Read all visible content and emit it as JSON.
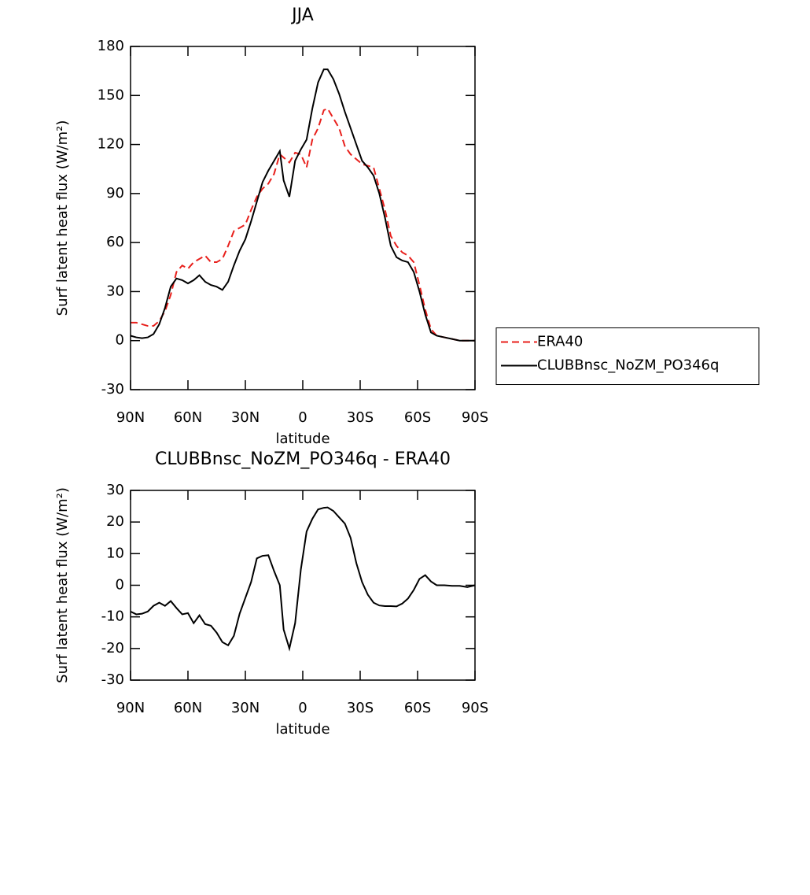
{
  "chart_data": [
    {
      "type": "line",
      "title": "JJA",
      "xlabel": "latitude",
      "ylabel": "Surf latent heat flux (W/m²)",
      "x": [
        90,
        87,
        84,
        81,
        78,
        75,
        72,
        69,
        66,
        63,
        60,
        57,
        54,
        51,
        48,
        45,
        42,
        39,
        36,
        33,
        30,
        27,
        24,
        21,
        18,
        15,
        12,
        10,
        7,
        4,
        1,
        -2,
        -5,
        -8,
        -11,
        -13,
        -16,
        -19,
        -22,
        -25,
        -28,
        -31,
        -34,
        -37,
        -40,
        -43,
        -46,
        -49,
        -52,
        -55,
        -58,
        -61,
        -64,
        -67,
        -70,
        -74,
        -78,
        -82,
        -86,
        -90
      ],
      "series": [
        {
          "name": "ERA40",
          "color": "#e8201c",
          "dashed": true,
          "values": [
            11,
            11,
            10,
            9,
            9,
            12,
            18,
            28,
            42,
            46,
            44,
            48,
            50,
            52,
            48,
            48,
            50,
            58,
            67,
            69,
            71,
            80,
            88,
            93,
            96,
            102,
            114,
            112,
            109,
            115,
            114,
            106,
            123,
            130,
            141,
            142,
            136,
            130,
            119,
            114,
            111,
            108,
            107,
            106,
            93,
            80,
            64,
            58,
            54,
            52,
            48,
            34,
            19,
            7,
            3,
            2,
            1,
            0,
            0,
            0
          ]
        },
        {
          "name": "CLUBBnsc_NoZM_PO346q",
          "color": "#000000",
          "dashed": false,
          "values": [
            3,
            2,
            1.5,
            2,
            4,
            10,
            20,
            33,
            38,
            37,
            35,
            37,
            40,
            36,
            34,
            33,
            31,
            36,
            46,
            55,
            62,
            73,
            85,
            97,
            104,
            110,
            116,
            98,
            88,
            110,
            117,
            123,
            142,
            158,
            166,
            166,
            160,
            151,
            140,
            130,
            120,
            110,
            106,
            101,
            90,
            75,
            58,
            51,
            49,
            48,
            42,
            30,
            16,
            5,
            3,
            2,
            1,
            0,
            0,
            0
          ]
        }
      ],
      "xlim": [
        90,
        -90
      ],
      "xticks": [
        {
          "value": 90,
          "label": "90N"
        },
        {
          "value": 60,
          "label": "60N"
        },
        {
          "value": 30,
          "label": "30N"
        },
        0,
        {
          "value": -30,
          "label": "30S"
        },
        {
          "value": -60,
          "label": "60S"
        },
        {
          "value": -90,
          "label": "90S"
        }
      ],
      "ylim": [
        -30,
        180
      ],
      "yticks": [
        -30,
        0,
        30,
        60,
        90,
        120,
        150,
        180
      ],
      "legend_position": "outside-right"
    },
    {
      "type": "line",
      "title": "CLUBBnsc_NoZM_PO346q - ERA40",
      "xlabel": "latitude",
      "ylabel": "Surf latent heat flux (W/m²)",
      "x": [
        90,
        87,
        84,
        81,
        78,
        75,
        72,
        69,
        66,
        63,
        60,
        57,
        54,
        51,
        48,
        45,
        42,
        39,
        36,
        33,
        30,
        27,
        24,
        21,
        18,
        15,
        12,
        10,
        7,
        4,
        1,
        -2,
        -5,
        -8,
        -11,
        -13,
        -16,
        -19,
        -22,
        -25,
        -28,
        -31,
        -34,
        -37,
        -40,
        -43,
        -46,
        -49,
        -52,
        -55,
        -58,
        -61,
        -64,
        -67,
        -70,
        -74,
        -78,
        -82,
        -86,
        -90
      ],
      "values": [
        -8.3,
        -9.2,
        -9,
        -8.3,
        -6.5,
        -5.5,
        -6.5,
        -5,
        -7.2,
        -9.2,
        -8.8,
        -12,
        -9.5,
        -12.3,
        -12.8,
        -15,
        -18,
        -19,
        -16,
        -9,
        -4,
        1,
        8.5,
        9.3,
        9.5,
        4.5,
        0,
        -14,
        -20,
        -12,
        5,
        17,
        21,
        24,
        24.5,
        24.6,
        23.5,
        21.5,
        19.5,
        15,
        7,
        1,
        -3,
        -5.5,
        -6.4,
        -6.6,
        -6.6,
        -6.7,
        -5.8,
        -4.2,
        -1.5,
        2,
        3.2,
        1.2,
        0,
        0,
        -0.2,
        -0.2,
        -0.6,
        0
      ],
      "color": "#000000",
      "xlim": [
        90,
        -90
      ],
      "xticks": [
        {
          "value": 90,
          "label": "90N"
        },
        {
          "value": 60,
          "label": "60N"
        },
        {
          "value": 30,
          "label": "30N"
        },
        0,
        {
          "value": -30,
          "label": "30S"
        },
        {
          "value": -60,
          "label": "60S"
        },
        {
          "value": -90,
          "label": "90S"
        }
      ],
      "ylim": [
        -30,
        30
      ],
      "yticks": [
        -30,
        -20,
        -10,
        0,
        10,
        20,
        30
      ]
    }
  ]
}
